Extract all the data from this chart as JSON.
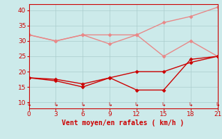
{
  "x": [
    0,
    3,
    6,
    9,
    12,
    15,
    18,
    21
  ],
  "line1_dark": [
    18,
    17,
    15,
    18,
    14,
    14,
    24,
    25
  ],
  "line2_dark": [
    18,
    17.5,
    16,
    18,
    20,
    20,
    23,
    25
  ],
  "line1_light": [
    32,
    30,
    32,
    29,
    32,
    25,
    30,
    25
  ],
  "line2_light": [
    32,
    30,
    32,
    32,
    32,
    36,
    38,
    41
  ],
  "color_dark": "#cc0000",
  "color_light": "#e88888",
  "xlabel": "Vent moyen/en rafales ( km/h )",
  "xlim": [
    0,
    21
  ],
  "ylim": [
    8,
    42
  ],
  "yticks": [
    10,
    15,
    20,
    25,
    30,
    35,
    40
  ],
  "xticks": [
    0,
    3,
    6,
    9,
    12,
    15,
    18,
    21
  ],
  "bg_color": "#cceaea",
  "grid_color": "#aacccc",
  "xlabel_color": "#cc0000",
  "tick_color": "#cc0000",
  "spine_color": "#cc0000",
  "markersize": 3,
  "linewidth": 1.0
}
